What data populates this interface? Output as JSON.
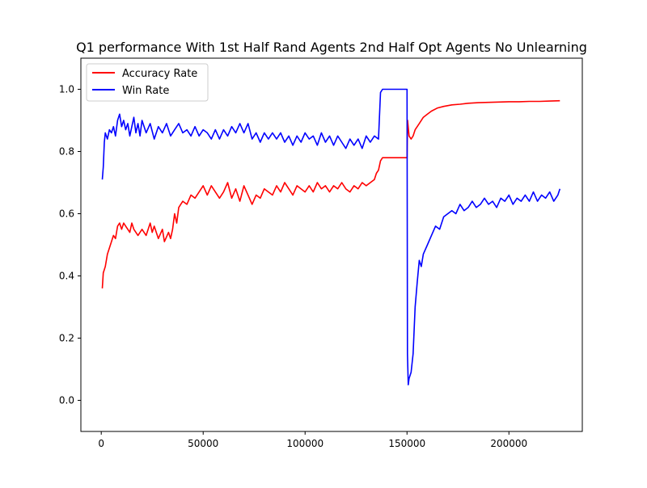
{
  "chart_data": {
    "type": "line",
    "title": "Q1 performance With 1st Half Rand Agents 2nd Half Opt Agents No Unlearning",
    "xlabel": "",
    "ylabel": "",
    "xlim": [
      -10000,
      236000
    ],
    "ylim": [
      -0.1,
      1.1
    ],
    "x_ticks": [
      0,
      50000,
      100000,
      150000,
      200000
    ],
    "x_tick_labels": [
      "0",
      "50000",
      "100000",
      "150000",
      "200000"
    ],
    "y_ticks": [
      0.0,
      0.2,
      0.4,
      0.6,
      0.8,
      1.0
    ],
    "y_tick_labels": [
      "0.0",
      "0.2",
      "0.4",
      "0.6",
      "0.8",
      "1.0"
    ],
    "grid": false,
    "legend_position": "top-left",
    "series": [
      {
        "name": "Accuracy Rate",
        "color": "#ff0000",
        "points": [
          [
            500,
            0.36
          ],
          [
            1000,
            0.41
          ],
          [
            2000,
            0.43
          ],
          [
            3000,
            0.47
          ],
          [
            4000,
            0.49
          ],
          [
            5000,
            0.51
          ],
          [
            6000,
            0.53
          ],
          [
            7000,
            0.52
          ],
          [
            8000,
            0.56
          ],
          [
            9000,
            0.57
          ],
          [
            10000,
            0.55
          ],
          [
            11000,
            0.57
          ],
          [
            12000,
            0.56
          ],
          [
            14000,
            0.54
          ],
          [
            15000,
            0.57
          ],
          [
            16000,
            0.55
          ],
          [
            18000,
            0.53
          ],
          [
            20000,
            0.55
          ],
          [
            22000,
            0.53
          ],
          [
            24000,
            0.57
          ],
          [
            25000,
            0.54
          ],
          [
            26000,
            0.56
          ],
          [
            28000,
            0.52
          ],
          [
            30000,
            0.55
          ],
          [
            31000,
            0.51
          ],
          [
            33000,
            0.54
          ],
          [
            34000,
            0.52
          ],
          [
            35000,
            0.55
          ],
          [
            36000,
            0.6
          ],
          [
            37000,
            0.57
          ],
          [
            38000,
            0.62
          ],
          [
            40000,
            0.64
          ],
          [
            42000,
            0.63
          ],
          [
            44000,
            0.66
          ],
          [
            46000,
            0.65
          ],
          [
            48000,
            0.67
          ],
          [
            50000,
            0.69
          ],
          [
            52000,
            0.66
          ],
          [
            54000,
            0.69
          ],
          [
            56000,
            0.67
          ],
          [
            58000,
            0.65
          ],
          [
            60000,
            0.67
          ],
          [
            62000,
            0.7
          ],
          [
            64000,
            0.65
          ],
          [
            66000,
            0.68
          ],
          [
            68000,
            0.64
          ],
          [
            70000,
            0.69
          ],
          [
            72000,
            0.66
          ],
          [
            74000,
            0.63
          ],
          [
            76000,
            0.66
          ],
          [
            78000,
            0.65
          ],
          [
            80000,
            0.68
          ],
          [
            82000,
            0.67
          ],
          [
            84000,
            0.66
          ],
          [
            86000,
            0.69
          ],
          [
            88000,
            0.67
          ],
          [
            90000,
            0.7
          ],
          [
            92000,
            0.68
          ],
          [
            94000,
            0.66
          ],
          [
            96000,
            0.69
          ],
          [
            98000,
            0.68
          ],
          [
            100000,
            0.67
          ],
          [
            102000,
            0.69
          ],
          [
            104000,
            0.67
          ],
          [
            106000,
            0.7
          ],
          [
            108000,
            0.68
          ],
          [
            110000,
            0.69
          ],
          [
            112000,
            0.67
          ],
          [
            114000,
            0.69
          ],
          [
            116000,
            0.68
          ],
          [
            118000,
            0.7
          ],
          [
            120000,
            0.68
          ],
          [
            122000,
            0.67
          ],
          [
            124000,
            0.69
          ],
          [
            126000,
            0.68
          ],
          [
            128000,
            0.7
          ],
          [
            130000,
            0.69
          ],
          [
            132000,
            0.7
          ],
          [
            134000,
            0.71
          ],
          [
            135000,
            0.73
          ],
          [
            136000,
            0.74
          ],
          [
            137000,
            0.77
          ],
          [
            138000,
            0.78
          ],
          [
            140000,
            0.78
          ],
          [
            142000,
            0.78
          ],
          [
            144000,
            0.78
          ],
          [
            146000,
            0.78
          ],
          [
            148000,
            0.78
          ],
          [
            150000,
            0.78
          ],
          [
            150300,
            0.9
          ],
          [
            151000,
            0.85
          ],
          [
            152000,
            0.84
          ],
          [
            153000,
            0.85
          ],
          [
            154000,
            0.87
          ],
          [
            156000,
            0.89
          ],
          [
            158000,
            0.91
          ],
          [
            160000,
            0.92
          ],
          [
            162000,
            0.93
          ],
          [
            165000,
            0.94
          ],
          [
            168000,
            0.945
          ],
          [
            172000,
            0.95
          ],
          [
            176000,
            0.952
          ],
          [
            180000,
            0.955
          ],
          [
            185000,
            0.957
          ],
          [
            190000,
            0.958
          ],
          [
            195000,
            0.959
          ],
          [
            200000,
            0.96
          ],
          [
            205000,
            0.96
          ],
          [
            210000,
            0.961
          ],
          [
            215000,
            0.961
          ],
          [
            220000,
            0.962
          ],
          [
            225000,
            0.963
          ]
        ]
      },
      {
        "name": "Win Rate",
        "color": "#0000ff",
        "points": [
          [
            500,
            0.71
          ],
          [
            1000,
            0.75
          ],
          [
            1500,
            0.83
          ],
          [
            2000,
            0.86
          ],
          [
            3000,
            0.84
          ],
          [
            4000,
            0.87
          ],
          [
            5000,
            0.86
          ],
          [
            6000,
            0.88
          ],
          [
            7000,
            0.85
          ],
          [
            8000,
            0.9
          ],
          [
            9000,
            0.92
          ],
          [
            10000,
            0.88
          ],
          [
            11000,
            0.9
          ],
          [
            12000,
            0.87
          ],
          [
            13000,
            0.89
          ],
          [
            14000,
            0.85
          ],
          [
            15000,
            0.88
          ],
          [
            16000,
            0.91
          ],
          [
            17000,
            0.86
          ],
          [
            18000,
            0.89
          ],
          [
            19000,
            0.85
          ],
          [
            20000,
            0.9
          ],
          [
            22000,
            0.86
          ],
          [
            24000,
            0.89
          ],
          [
            26000,
            0.84
          ],
          [
            28000,
            0.88
          ],
          [
            30000,
            0.86
          ],
          [
            32000,
            0.89
          ],
          [
            34000,
            0.85
          ],
          [
            36000,
            0.87
          ],
          [
            38000,
            0.89
          ],
          [
            40000,
            0.86
          ],
          [
            42000,
            0.87
          ],
          [
            44000,
            0.85
          ],
          [
            46000,
            0.88
          ],
          [
            48000,
            0.85
          ],
          [
            50000,
            0.87
          ],
          [
            52000,
            0.86
          ],
          [
            54000,
            0.84
          ],
          [
            56000,
            0.87
          ],
          [
            58000,
            0.84
          ],
          [
            60000,
            0.87
          ],
          [
            62000,
            0.85
          ],
          [
            64000,
            0.88
          ],
          [
            66000,
            0.86
          ],
          [
            68000,
            0.89
          ],
          [
            70000,
            0.86
          ],
          [
            72000,
            0.89
          ],
          [
            74000,
            0.84
          ],
          [
            76000,
            0.86
          ],
          [
            78000,
            0.83
          ],
          [
            80000,
            0.86
          ],
          [
            82000,
            0.84
          ],
          [
            84000,
            0.86
          ],
          [
            86000,
            0.84
          ],
          [
            88000,
            0.86
          ],
          [
            90000,
            0.83
          ],
          [
            92000,
            0.85
          ],
          [
            94000,
            0.82
          ],
          [
            96000,
            0.85
          ],
          [
            98000,
            0.83
          ],
          [
            100000,
            0.86
          ],
          [
            102000,
            0.84
          ],
          [
            104000,
            0.85
          ],
          [
            106000,
            0.82
          ],
          [
            108000,
            0.86
          ],
          [
            110000,
            0.83
          ],
          [
            112000,
            0.85
          ],
          [
            114000,
            0.82
          ],
          [
            116000,
            0.85
          ],
          [
            118000,
            0.83
          ],
          [
            120000,
            0.81
          ],
          [
            122000,
            0.84
          ],
          [
            124000,
            0.82
          ],
          [
            126000,
            0.84
          ],
          [
            128000,
            0.81
          ],
          [
            130000,
            0.85
          ],
          [
            132000,
            0.83
          ],
          [
            134000,
            0.85
          ],
          [
            136000,
            0.84
          ],
          [
            137000,
            0.99
          ],
          [
            138000,
            1.0
          ],
          [
            140000,
            1.0
          ],
          [
            142000,
            1.0
          ],
          [
            144000,
            1.0
          ],
          [
            146000,
            1.0
          ],
          [
            148000,
            1.0
          ],
          [
            150000,
            1.0
          ],
          [
            150200,
            0.15
          ],
          [
            150600,
            0.05
          ],
          [
            151000,
            0.07
          ],
          [
            152000,
            0.09
          ],
          [
            153000,
            0.15
          ],
          [
            154000,
            0.3
          ],
          [
            155000,
            0.38
          ],
          [
            156000,
            0.45
          ],
          [
            157000,
            0.43
          ],
          [
            158000,
            0.47
          ],
          [
            160000,
            0.5
          ],
          [
            162000,
            0.53
          ],
          [
            164000,
            0.56
          ],
          [
            166000,
            0.55
          ],
          [
            168000,
            0.59
          ],
          [
            170000,
            0.6
          ],
          [
            172000,
            0.61
          ],
          [
            174000,
            0.6
          ],
          [
            176000,
            0.63
          ],
          [
            178000,
            0.61
          ],
          [
            180000,
            0.62
          ],
          [
            182000,
            0.64
          ],
          [
            184000,
            0.62
          ],
          [
            186000,
            0.63
          ],
          [
            188000,
            0.65
          ],
          [
            190000,
            0.63
          ],
          [
            192000,
            0.64
          ],
          [
            194000,
            0.62
          ],
          [
            196000,
            0.65
          ],
          [
            198000,
            0.64
          ],
          [
            200000,
            0.66
          ],
          [
            202000,
            0.63
          ],
          [
            204000,
            0.65
          ],
          [
            206000,
            0.64
          ],
          [
            208000,
            0.66
          ],
          [
            210000,
            0.64
          ],
          [
            212000,
            0.67
          ],
          [
            214000,
            0.64
          ],
          [
            216000,
            0.66
          ],
          [
            218000,
            0.65
          ],
          [
            220000,
            0.67
          ],
          [
            222000,
            0.64
          ],
          [
            224000,
            0.66
          ],
          [
            225000,
            0.68
          ]
        ]
      }
    ]
  }
}
